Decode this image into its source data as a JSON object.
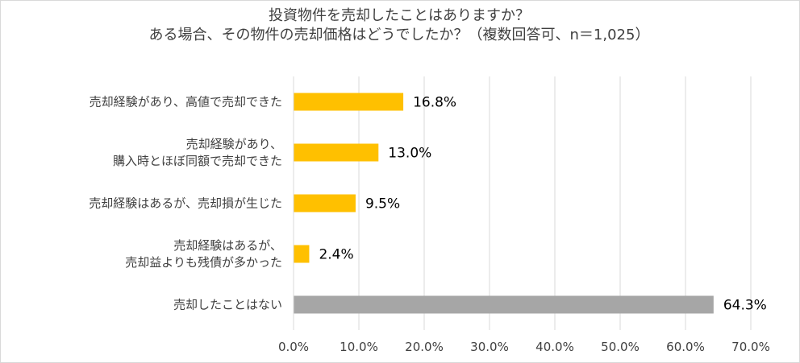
{
  "chart_data": {
    "type": "bar",
    "orientation": "horizontal",
    "title": [
      "投資物件を売却したことはありますか？",
      "ある場合、その物件の売却価格はどうでしたか？（複数回答可、n＝1,025）"
    ],
    "categories": [
      [
        "売却経験があり、高値で売却できた"
      ],
      [
        "売却経験があり、",
        "購入時とほぼ同額で売却できた"
      ],
      [
        "売却経験はあるが、売却損が生じた"
      ],
      [
        "売却経験はあるが、",
        "売却益よりも残債が多かった"
      ],
      [
        "売却したことはない"
      ]
    ],
    "values": [
      16.8,
      13.0,
      9.5,
      2.4,
      64.3
    ],
    "value_labels": [
      "16.8%",
      "13.0%",
      "9.5%",
      "2.4%",
      "64.3%"
    ],
    "bar_colors": [
      "#ffc000",
      "#ffc000",
      "#ffc000",
      "#ffc000",
      "#a6a6a6"
    ],
    "xlim": [
      0,
      70
    ],
    "xticks": [
      0,
      10,
      20,
      30,
      40,
      50,
      60,
      70
    ],
    "xtick_labels": [
      "0.0%",
      "10.0%",
      "20.0%",
      "30.0%",
      "40.0%",
      "50.0%",
      "60.0%",
      "70.0%"
    ],
    "grid": true,
    "legend": "none"
  }
}
